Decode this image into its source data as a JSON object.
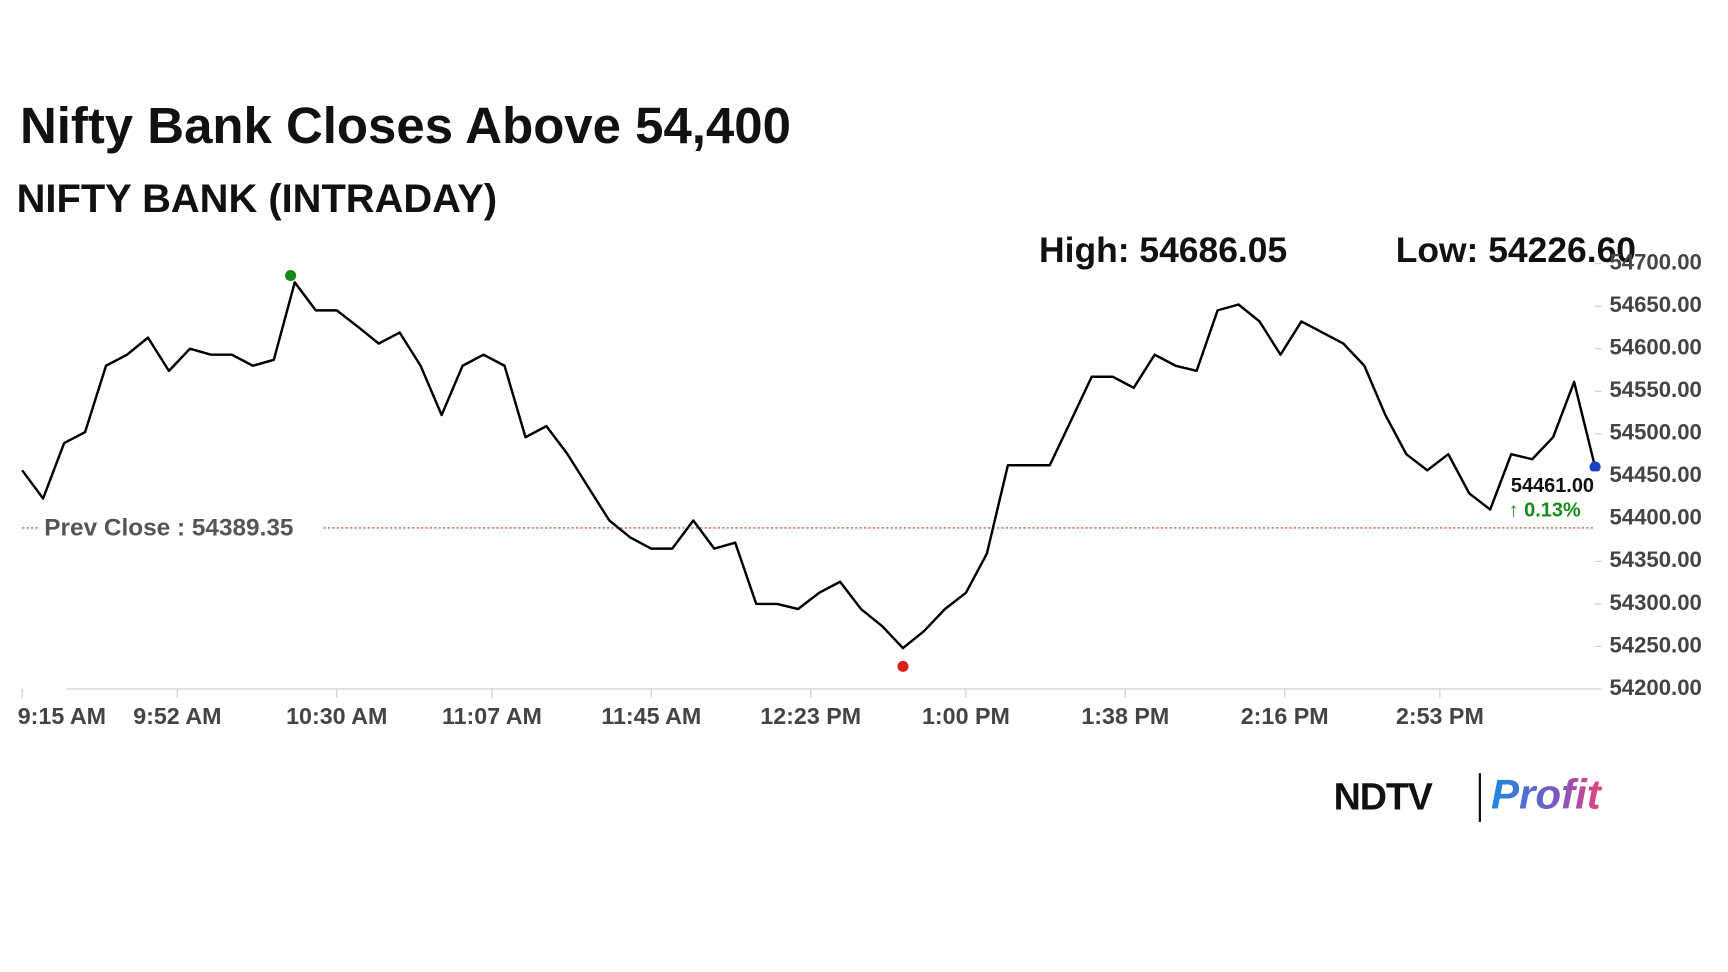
{
  "chart_data": {
    "type": "line",
    "title": "Nifty Bank Closes Above 54,400",
    "subtitle": "NIFTY BANK (INTRADAY)",
    "color": "#000000",
    "x": [
      "9:15 AM",
      "9:20 AM",
      "9:25 AM",
      "9:30 AM",
      "9:35 AM",
      "9:40 AM",
      "9:45 AM",
      "9:50 AM",
      "9:55 AM",
      "10:00 AM",
      "10:05 AM",
      "10:10 AM",
      "10:15 AM",
      "10:20 AM",
      "10:25 AM",
      "10:30 AM",
      "10:35 AM",
      "10:40 AM",
      "10:45 AM",
      "10:50 AM",
      "10:55 AM",
      "11:00 AM",
      "11:05 AM",
      "11:10 AM",
      "11:15 AM",
      "11:20 AM",
      "11:25 AM",
      "11:30 AM",
      "11:35 AM",
      "11:40 AM",
      "11:45 AM",
      "11:50 AM",
      "11:55 AM",
      "12:00 PM",
      "12:05 PM",
      "12:10 PM",
      "12:15 PM",
      "12:20 PM",
      "12:25 PM",
      "12:30 PM",
      "12:35 PM",
      "12:40 PM",
      "12:45 PM",
      "12:50 PM",
      "12:55 PM",
      "1:00 PM",
      "1:05 PM",
      "1:10 PM",
      "1:15 PM",
      "1:20 PM",
      "1:25 PM",
      "1:30 PM",
      "1:35 PM",
      "1:40 PM",
      "1:45 PM",
      "1:50 PM",
      "1:55 PM",
      "2:00 PM",
      "2:05 PM",
      "2:10 PM",
      "2:15 PM",
      "2:20 PM",
      "2:25 PM",
      "2:30 PM",
      "2:35 PM",
      "2:40 PM",
      "2:45 PM",
      "2:50 PM",
      "2:55 PM",
      "3:00 PM",
      "3:05 PM",
      "3:10 PM",
      "3:15 PM",
      "3:20 PM",
      "3:25 PM",
      "3:30 PM"
    ],
    "values": [
      54457,
      54424,
      54489,
      54502,
      54580,
      54593,
      54613,
      54574,
      54600,
      54593,
      54593,
      54580,
      54587,
      54678,
      54645,
      54645,
      54626,
      54606,
      54619,
      54580,
      54522,
      54580,
      54593,
      54580,
      54496,
      54509,
      54476,
      54437,
      54398,
      54378,
      54365,
      54365,
      54398,
      54365,
      54372,
      54300,
      54300,
      54294,
      54313,
      54326,
      54294,
      54274,
      54248,
      54268,
      54294,
      54313,
      54359,
      54463,
      54463,
      54463,
      54515,
      54567,
      54567,
      54554,
      54593,
      54580,
      54574,
      54645,
      54652,
      54632,
      54593,
      54632,
      54619,
      54606,
      54580,
      54522,
      54476,
      54457,
      54476,
      54430,
      54411,
      54476,
      54470,
      54496,
      54561,
      54461
    ],
    "xlim": [
      "9:15 AM",
      "3:30 PM"
    ],
    "xticks": [
      "9:15 AM",
      "9:52 AM",
      "10:30 AM",
      "11:07 AM",
      "11:45 AM",
      "12:23 PM",
      "1:00 PM",
      "1:38 PM",
      "2:16 PM",
      "2:53 PM"
    ],
    "ylim": [
      54200,
      54700
    ],
    "yticks": [
      {
        "value": 54200,
        "label": "54200.00"
      },
      {
        "value": 54250,
        "label": "54250.00"
      },
      {
        "value": 54300,
        "label": "54300.00"
      },
      {
        "value": 54350,
        "label": "54350.00"
      },
      {
        "value": 54400,
        "label": "54400.00"
      },
      {
        "value": 54450,
        "label": "54450.00"
      },
      {
        "value": 54500,
        "label": "54500.00"
      },
      {
        "value": 54550,
        "label": "54550.00"
      },
      {
        "value": 54600,
        "label": "54600.00"
      },
      {
        "value": 54650,
        "label": "54650.00"
      },
      {
        "value": 54700,
        "label": "54700.00"
      }
    ],
    "high": {
      "x": "10:19 AM",
      "value": 54686.05,
      "label": "High: 54686.05",
      "color": "#138a13"
    },
    "low": {
      "x": "12:45 PM",
      "value": 54226.6,
      "label": "Low: 54226.60",
      "color": "#e01b1b"
    },
    "prev_close": {
      "value": 54389.35,
      "label": "Prev Close : 54389.35",
      "color": "#c0392b"
    },
    "last": {
      "value": 54461,
      "label": "54461.00",
      "change_label": "↑ 0.13%",
      "color": "#1f3fbf"
    },
    "brand": {
      "name": "NDTV",
      "product": "Profit"
    }
  }
}
